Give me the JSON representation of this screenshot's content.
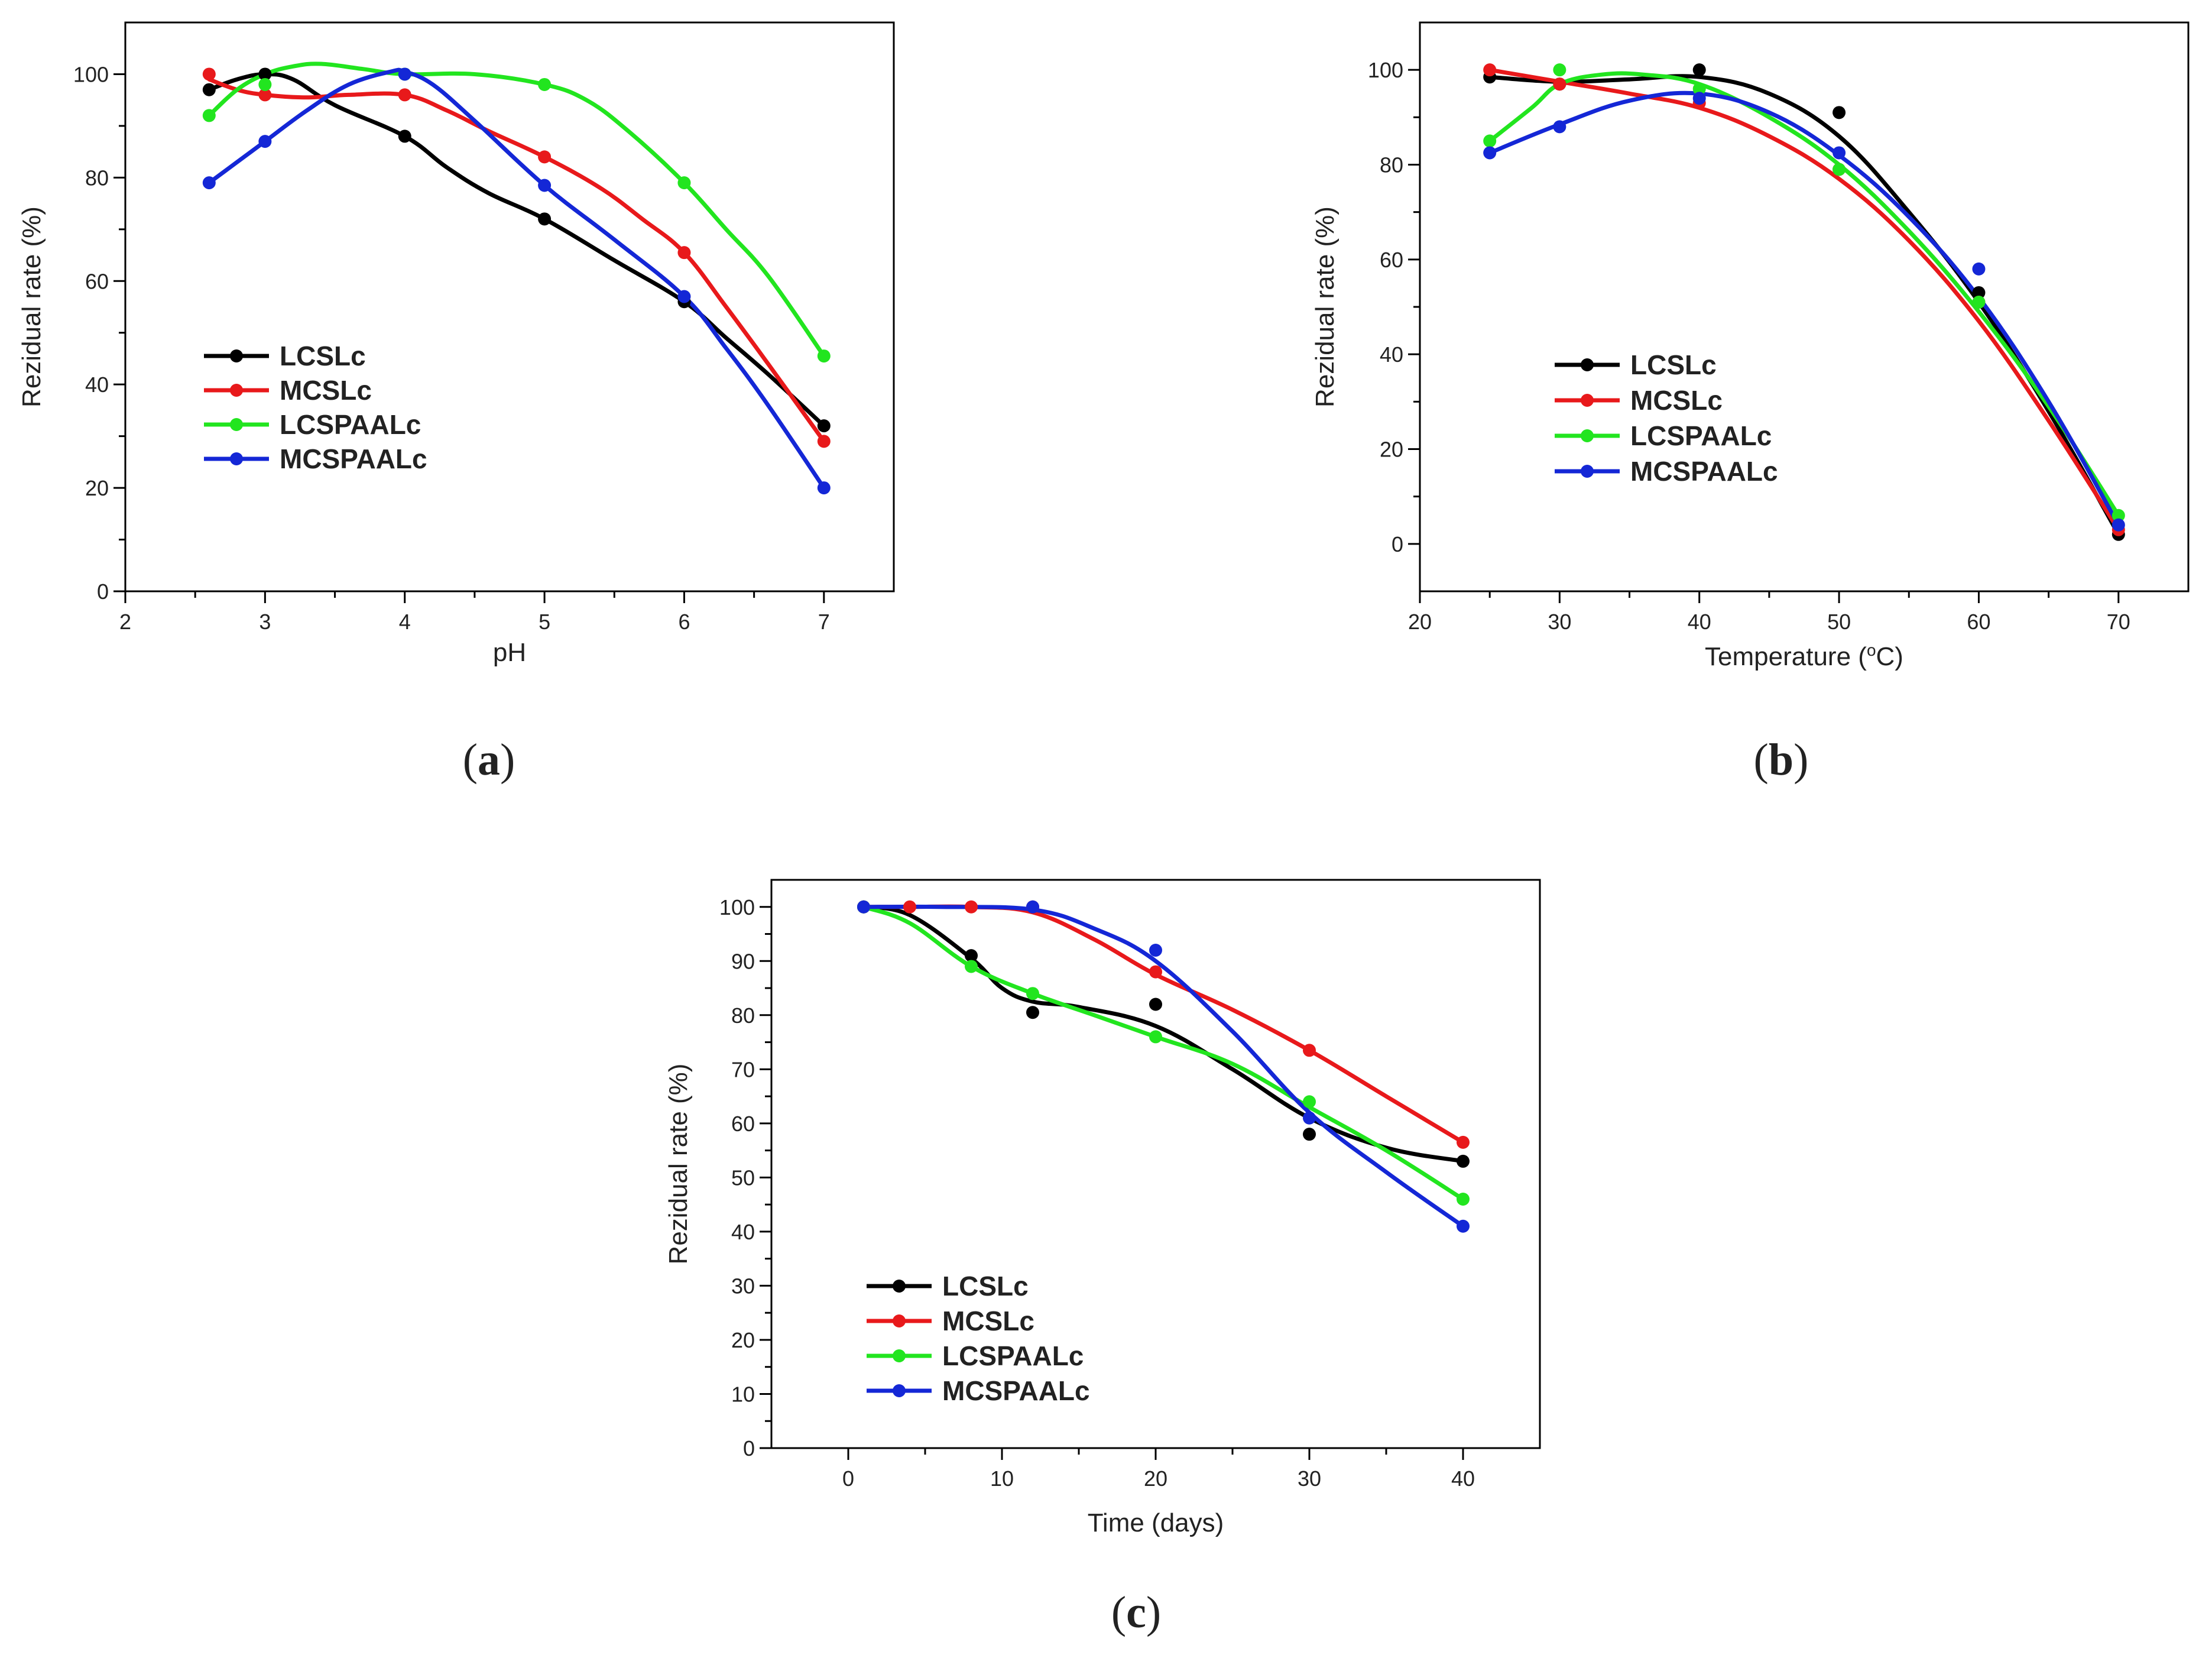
{
  "figure": {
    "panels": [
      {
        "id": "a",
        "caption_open": "(",
        "caption_letter": "a",
        "caption_close": ")"
      },
      {
        "id": "b",
        "caption_open": "(",
        "caption_letter": "b",
        "caption_close": ")"
      },
      {
        "id": "c",
        "caption_open": "(",
        "caption_letter": "c",
        "caption_close": ")"
      }
    ]
  },
  "colors": {
    "LCSLc": "#000000",
    "MCSLc": "#e8191b",
    "LCSPAALc": "#22e51f",
    "MCSPAALc": "#1427d6",
    "axis": "#000000"
  },
  "chart_data": [
    {
      "id": "a",
      "type": "scatter",
      "title": "",
      "xlabel": "pH",
      "ylabel": "Rezidual rate (%)",
      "xlim": [
        2,
        7.5
      ],
      "ylim": [
        0,
        110
      ],
      "xticks": [
        2,
        3,
        4,
        5,
        6,
        7
      ],
      "yticks": [
        0,
        20,
        40,
        60,
        80,
        100
      ],
      "grid": false,
      "legend_position": "center-left",
      "series": [
        {
          "name": "LCSLc",
          "x": [
            2.6,
            3,
            4,
            5,
            6,
            7
          ],
          "y": [
            97,
            100,
            88,
            72,
            56,
            32
          ],
          "curve": [
            [
              2.6,
              97
            ],
            [
              2.8,
              99
            ],
            [
              3,
              100
            ],
            [
              3.2,
              99
            ],
            [
              3.5,
              94
            ],
            [
              4,
              88
            ],
            [
              4.3,
              82
            ],
            [
              4.6,
              77
            ],
            [
              5,
              72
            ],
            [
              5.5,
              64
            ],
            [
              6,
              56
            ],
            [
              6.3,
              49
            ],
            [
              6.6,
              42
            ],
            [
              7,
              32
            ]
          ]
        },
        {
          "name": "MCSLc",
          "x": [
            2.6,
            3,
            4,
            5,
            6,
            7
          ],
          "y": [
            100,
            96,
            96,
            84,
            65.5,
            29
          ],
          "curve": [
            [
              2.6,
              99
            ],
            [
              2.8,
              97
            ],
            [
              3,
              96
            ],
            [
              3.3,
              95.5
            ],
            [
              3.6,
              96
            ],
            [
              4,
              96
            ],
            [
              4.3,
              93
            ],
            [
              4.6,
              89
            ],
            [
              5,
              84
            ],
            [
              5.4,
              78
            ],
            [
              5.7,
              72
            ],
            [
              6,
              65.5
            ],
            [
              6.3,
              55
            ],
            [
              6.6,
              44
            ],
            [
              7,
              29
            ]
          ]
        },
        {
          "name": "LCSPAALc",
          "x": [
            2.6,
            3,
            4,
            5,
            6,
            7
          ],
          "y": [
            92,
            98,
            100,
            98,
            79,
            45.5
          ],
          "curve": [
            [
              2.6,
              92
            ],
            [
              2.8,
              97
            ],
            [
              3,
              100
            ],
            [
              3.2,
              101.5
            ],
            [
              3.4,
              102
            ],
            [
              3.7,
              101
            ],
            [
              4,
              100
            ],
            [
              4.5,
              100
            ],
            [
              5,
              98
            ],
            [
              5.3,
              95
            ],
            [
              5.6,
              89
            ],
            [
              6,
              79
            ],
            [
              6.3,
              70
            ],
            [
              6.6,
              61
            ],
            [
              7,
              45.5
            ]
          ]
        },
        {
          "name": "MCSPAALc",
          "x": [
            2.6,
            3,
            4,
            5,
            6,
            7
          ],
          "y": [
            79,
            87,
            100,
            78.5,
            57,
            20
          ],
          "curve": [
            [
              2.6,
              79
            ],
            [
              2.8,
              83
            ],
            [
              3,
              87
            ],
            [
              3.3,
              93
            ],
            [
              3.6,
              98
            ],
            [
              3.9,
              100.5
            ],
            [
              4,
              100.5
            ],
            [
              4.2,
              98
            ],
            [
              4.5,
              91
            ],
            [
              5,
              78.5
            ],
            [
              5.5,
              68
            ],
            [
              6,
              57
            ],
            [
              6.3,
              47
            ],
            [
              6.6,
              36
            ],
            [
              7,
              20
            ]
          ]
        }
      ]
    },
    {
      "id": "b",
      "type": "scatter",
      "title": "",
      "xlabel": "Temperature (",
      "xlabel_sup": "o",
      "xlabel_tail": "C)",
      "ylabel": "Rezidual rate (%)",
      "xlim": [
        20,
        75
      ],
      "ylim": [
        -10,
        110
      ],
      "xticks": [
        20,
        30,
        40,
        50,
        60,
        70
      ],
      "yticks": [
        0,
        20,
        40,
        60,
        80,
        100
      ],
      "grid": false,
      "legend_position": "center-left",
      "series": [
        {
          "name": "LCSLc",
          "x": [
            25,
            30,
            40,
            50,
            60,
            70
          ],
          "y": [
            98.5,
            97,
            100,
            91,
            53,
            2
          ],
          "curve": [
            [
              25,
              98.5
            ],
            [
              30,
              97.5
            ],
            [
              35,
              98
            ],
            [
              40,
              98.5
            ],
            [
              45,
              95
            ],
            [
              50,
              86
            ],
            [
              55,
              70
            ],
            [
              60,
              51
            ],
            [
              65,
              28
            ],
            [
              70,
              2
            ]
          ]
        },
        {
          "name": "MCSLc",
          "x": [
            25,
            30,
            40,
            50,
            60,
            70
          ],
          "y": [
            100,
            97,
            93,
            79,
            51,
            3
          ],
          "curve": [
            [
              25,
              100
            ],
            [
              30,
              97.5
            ],
            [
              35,
              95
            ],
            [
              40,
              92
            ],
            [
              45,
              86
            ],
            [
              50,
              77
            ],
            [
              55,
              64
            ],
            [
              60,
              47
            ],
            [
              65,
              26
            ],
            [
              70,
              3
            ]
          ]
        },
        {
          "name": "LCSPAALc",
          "x": [
            25,
            30,
            40,
            50,
            60,
            70
          ],
          "y": [
            85,
            100,
            96,
            79,
            51,
            6
          ],
          "curve": [
            [
              25,
              85
            ],
            [
              28,
              92
            ],
            [
              30,
              97
            ],
            [
              33,
              99
            ],
            [
              36,
              99
            ],
            [
              40,
              97
            ],
            [
              45,
              90
            ],
            [
              50,
              80
            ],
            [
              55,
              66
            ],
            [
              60,
              49
            ],
            [
              65,
              29
            ],
            [
              70,
              6
            ]
          ]
        },
        {
          "name": "MCSPAALc",
          "x": [
            25,
            30,
            40,
            50,
            60,
            70
          ],
          "y": [
            82.5,
            88,
            94,
            82.5,
            58,
            4
          ],
          "curve": [
            [
              25,
              82.5
            ],
            [
              30,
              88.5
            ],
            [
              35,
              93.5
            ],
            [
              40,
              95
            ],
            [
              45,
              91
            ],
            [
              50,
              82
            ],
            [
              55,
              69
            ],
            [
              60,
              52
            ],
            [
              65,
              30
            ],
            [
              70,
              4
            ]
          ]
        }
      ]
    },
    {
      "id": "c",
      "type": "scatter",
      "title": "",
      "xlabel": "Time (days)",
      "ylabel": "Rezidual rate (%)",
      "xlim": [
        -5,
        45
      ],
      "ylim": [
        0,
        105
      ],
      "xticks": [
        0,
        10,
        20,
        30,
        40
      ],
      "yticks": [
        0,
        10,
        20,
        30,
        40,
        50,
        60,
        70,
        80,
        90,
        100
      ],
      "grid": false,
      "legend_position": "bottom-left",
      "series": [
        {
          "name": "LCSLc",
          "x": [
            1,
            8,
            12,
            20,
            30,
            40
          ],
          "y": [
            100,
            91,
            80.5,
            82,
            58,
            53
          ],
          "curve": [
            [
              1,
              100
            ],
            [
              4,
              98.5
            ],
            [
              8,
              90.5
            ],
            [
              10,
              85
            ],
            [
              12,
              82.5
            ],
            [
              15,
              81.5
            ],
            [
              20,
              78
            ],
            [
              25,
              70
            ],
            [
              30,
              61
            ],
            [
              35,
              55.5
            ],
            [
              40,
              53
            ]
          ]
        },
        {
          "name": "MCSLc",
          "x": [
            1,
            4,
            8,
            12,
            20,
            30,
            40
          ],
          "y": [
            100,
            100,
            100,
            100,
            88,
            73.5,
            56.5
          ],
          "curve": [
            [
              1,
              100
            ],
            [
              4,
              100
            ],
            [
              8,
              100
            ],
            [
              12,
              99
            ],
            [
              16,
              94
            ],
            [
              20,
              87.5
            ],
            [
              25,
              81
            ],
            [
              30,
              73.5
            ],
            [
              35,
              65
            ],
            [
              40,
              56.5
            ]
          ]
        },
        {
          "name": "LCSPAALc",
          "x": [
            1,
            8,
            12,
            20,
            30,
            40
          ],
          "y": [
            100,
            89,
            84,
            76,
            64,
            46
          ],
          "curve": [
            [
              1,
              100
            ],
            [
              4,
              97
            ],
            [
              8,
              89
            ],
            [
              12,
              84
            ],
            [
              16,
              80
            ],
            [
              20,
              76
            ],
            [
              25,
              71
            ],
            [
              30,
              63
            ],
            [
              35,
              55
            ],
            [
              40,
              46
            ]
          ]
        },
        {
          "name": "MCSPAALc",
          "x": [
            1,
            12,
            20,
            30,
            40
          ],
          "y": [
            100,
            100,
            92,
            61,
            41
          ],
          "curve": [
            [
              1,
              100
            ],
            [
              6,
              100
            ],
            [
              12,
              99.5
            ],
            [
              16,
              96
            ],
            [
              20,
              90
            ],
            [
              25,
              77
            ],
            [
              30,
              62
            ],
            [
              35,
              51
            ],
            [
              40,
              41
            ]
          ]
        }
      ]
    }
  ]
}
